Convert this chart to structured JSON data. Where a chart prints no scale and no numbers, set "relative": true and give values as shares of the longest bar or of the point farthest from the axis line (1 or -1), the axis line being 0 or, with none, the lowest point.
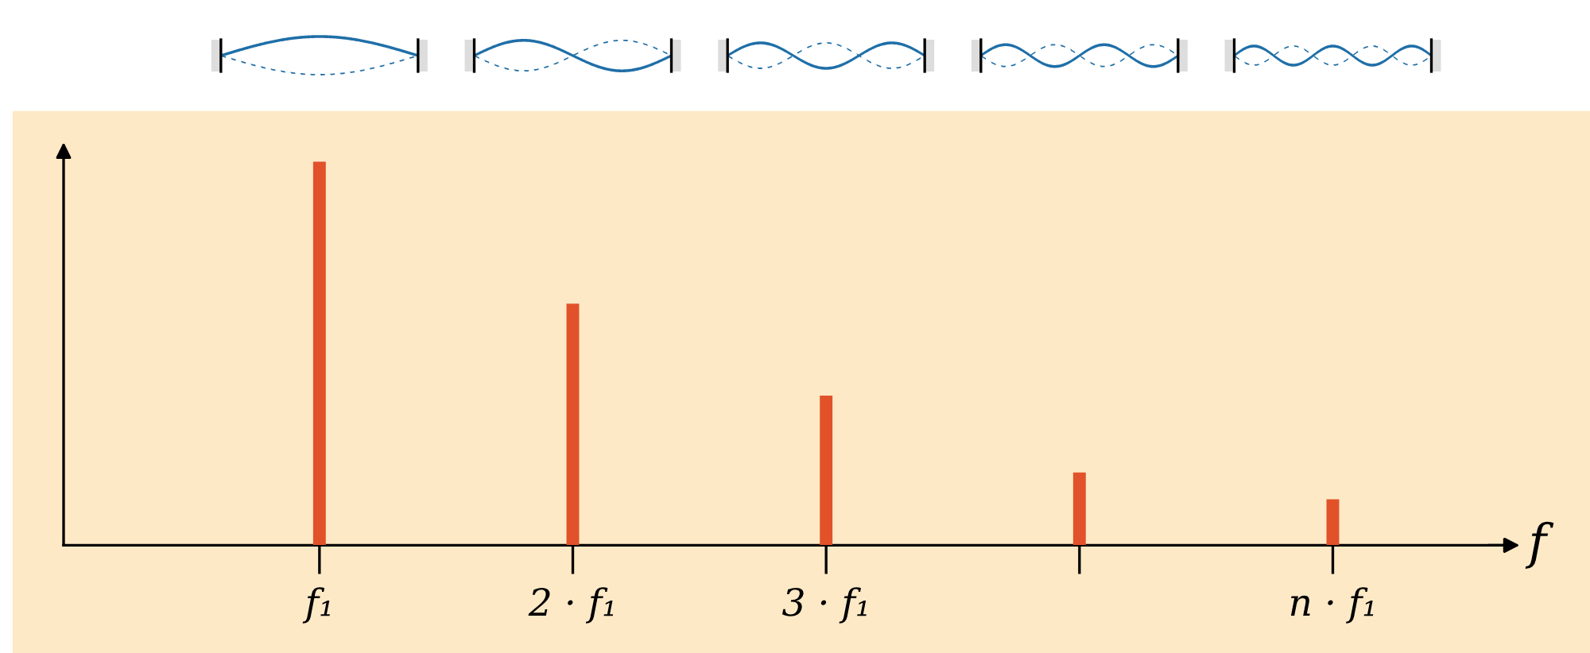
{
  "chart_data": {
    "type": "bar",
    "relative": true,
    "tick_labels": "x",
    "xlabel": "f",
    "color": "#e2522a",
    "categories": [
      "f₁",
      "2 · f₁",
      "3 · f₁",
      null,
      "n · f₁"
    ],
    "values": [
      1,
      0.63,
      0.39,
      0.19,
      0.12
    ]
  }
}
